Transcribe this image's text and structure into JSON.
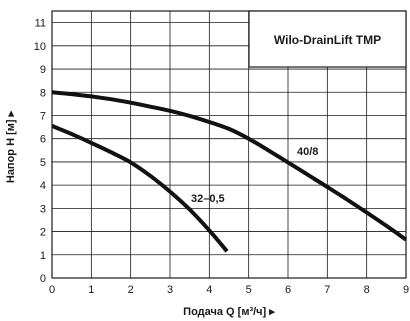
{
  "chart_data": {
    "type": "line",
    "title": "Wilo-DrainLift TMP",
    "xlabel": "Подача Q [м³/ч] ▸",
    "ylabel": "Напор H [м] ▸",
    "xlim": [
      0,
      9
    ],
    "ylim": [
      0,
      11.5
    ],
    "x_ticks": [
      0,
      1,
      2,
      3,
      4,
      5,
      6,
      7,
      8,
      9
    ],
    "y_ticks": [
      0,
      1,
      2,
      3,
      4,
      5,
      6,
      7,
      8,
      9,
      10,
      11
    ],
    "grid": true,
    "series": [
      {
        "name": "40/8",
        "x": [
          0,
          0.5,
          1,
          1.5,
          2,
          2.5,
          3,
          3.5,
          4,
          4.5,
          5,
          5.5,
          6,
          6.5,
          7,
          7.5,
          8,
          8.5,
          9
        ],
        "y": [
          8.0,
          7.92,
          7.82,
          7.7,
          7.55,
          7.38,
          7.2,
          6.98,
          6.72,
          6.42,
          6.0,
          5.5,
          4.98,
          4.45,
          3.92,
          3.38,
          2.82,
          2.25,
          1.65
        ]
      },
      {
        "name": "32–0,5",
        "x": [
          0,
          0.5,
          1,
          1.5,
          2,
          2.5,
          3,
          3.5,
          4,
          4.45
        ],
        "y": [
          6.55,
          6.2,
          5.82,
          5.42,
          4.98,
          4.4,
          3.72,
          2.95,
          2.05,
          1.15
        ]
      }
    ]
  }
}
